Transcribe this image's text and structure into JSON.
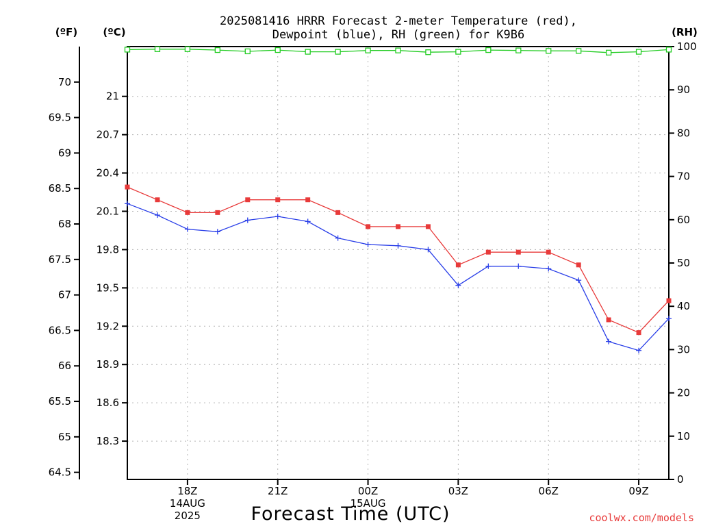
{
  "chart_data": {
    "type": "line",
    "title_lines": [
      "2025081416 HRRR Forecast 2-meter Temperature (red),",
      "Dewpoint (blue), RH (green) for K9B6"
    ],
    "units": {
      "fahrenheit": "(ºF)",
      "celsius": "(ºC)",
      "rh": "(RH)"
    },
    "xlabel": "Forecast Time (UTC)",
    "credit": "coolwx.com/models",
    "x_forecast_hours": [
      0,
      1,
      2,
      3,
      4,
      5,
      6,
      7,
      8,
      9,
      10,
      11,
      12,
      13,
      14,
      15,
      16,
      17,
      18
    ],
    "x_range_hours": [
      0,
      18
    ],
    "x_ticks": [
      {
        "hour": 2,
        "lines": [
          "18Z",
          "14AUG",
          "2025"
        ]
      },
      {
        "hour": 5,
        "lines": [
          "21Z"
        ]
      },
      {
        "hour": 8,
        "lines": [
          "00Z",
          "15AUG"
        ]
      },
      {
        "hour": 11,
        "lines": [
          "03Z"
        ]
      },
      {
        "hour": 14,
        "lines": [
          "06Z"
        ]
      },
      {
        "hour": 17,
        "lines": [
          "09Z"
        ]
      }
    ],
    "y_left_f": {
      "range": [
        64.4,
        70.5
      ],
      "ticks": [
        "64.5",
        "65",
        "65.5",
        "66",
        "66.5",
        "67",
        "67.5",
        "68",
        "68.5",
        "69",
        "69.5",
        "70"
      ]
    },
    "y_left_c": {
      "range": [
        18.0,
        21.39
      ],
      "ticks": [
        "18.3",
        "18.6",
        "18.9",
        "19.2",
        "19.5",
        "19.8",
        "20.1",
        "20.4",
        "20.7",
        "21"
      ]
    },
    "y_right_rh": {
      "range": [
        0,
        100
      ],
      "ticks": [
        "0",
        "10",
        "20",
        "30",
        "40",
        "50",
        "60",
        "70",
        "80",
        "90",
        "100"
      ]
    },
    "series": [
      {
        "name": "Temperature",
        "axis": "c",
        "color": "#e83a3a",
        "marker": "square",
        "values": [
          20.29,
          20.19,
          20.09,
          20.09,
          20.19,
          20.19,
          20.19,
          20.09,
          19.98,
          19.98,
          19.98,
          19.68,
          19.78,
          19.78,
          19.78,
          19.68,
          19.25,
          19.15,
          19.4
        ]
      },
      {
        "name": "Dewpoint",
        "axis": "c",
        "color": "#2a3fe8",
        "marker": "plus",
        "values": [
          20.16,
          20.07,
          19.96,
          19.94,
          20.03,
          20.06,
          20.02,
          19.89,
          19.84,
          19.83,
          19.8,
          19.52,
          19.67,
          19.67,
          19.65,
          19.56,
          19.08,
          19.01,
          19.26
        ]
      },
      {
        "name": "RH",
        "axis": "rh",
        "color": "#22cc22",
        "marker": "open-square",
        "values": [
          99.3,
          99.4,
          99.4,
          99.2,
          98.9,
          99.2,
          98.8,
          98.8,
          99.1,
          99.1,
          98.7,
          98.8,
          99.2,
          99.1,
          99.0,
          99.0,
          98.6,
          98.8,
          99.3
        ]
      }
    ],
    "grid": true,
    "legend": "in title"
  }
}
